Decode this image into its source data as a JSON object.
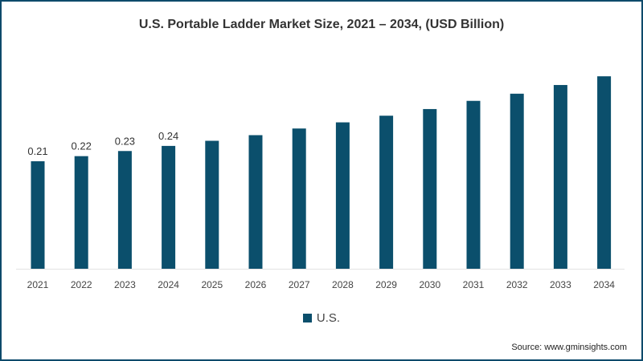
{
  "chart_data": {
    "type": "bar",
    "title": "U.S. Portable Ladder Market Size, 2021 – 2034, (USD Billion)",
    "categories": [
      "2021",
      "2022",
      "2023",
      "2024",
      "2025",
      "2026",
      "2027",
      "2028",
      "2029",
      "2030",
      "2031",
      "2032",
      "2033",
      "2034"
    ],
    "series": [
      {
        "name": "U.S.",
        "color": "#0b4f6c",
        "values": [
          0.21,
          0.22,
          0.23,
          0.24,
          0.25,
          0.261,
          0.274,
          0.286,
          0.299,
          0.312,
          0.328,
          0.342,
          0.359,
          0.376
        ]
      }
    ],
    "data_labels": [
      "0.21",
      "0.22",
      "0.23",
      "0.24"
    ],
    "xlabel": "",
    "ylabel": "",
    "ylim": [
      0,
      0.4
    ],
    "grid": false,
    "legend_position": "bottom-center"
  },
  "source": "Source: www.gminsights.com"
}
